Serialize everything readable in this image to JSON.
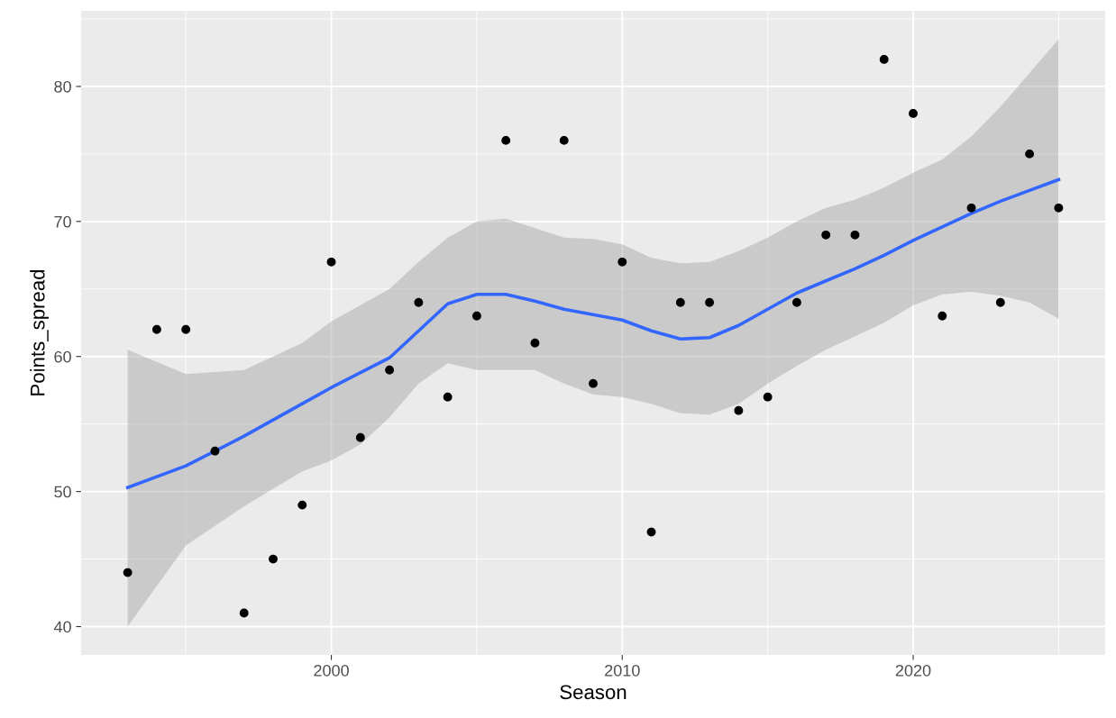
{
  "chart_data": {
    "type": "scatter",
    "xlabel": "Season",
    "ylabel": "Points_spread",
    "xlim": [
      1991.4,
      2026.6
    ],
    "ylim": [
      37.9,
      85.6
    ],
    "xticks": [
      2000,
      2010,
      2020
    ],
    "yticks": [
      40,
      50,
      60,
      70,
      80
    ],
    "grid": true,
    "series": [
      {
        "type": "line",
        "color": "#3366ff",
        "marker": "none",
        "line_style": "solid",
        "x": [
          1993,
          1995,
          1997,
          1999,
          2000,
          2001,
          2002,
          2003,
          2004,
          2005,
          2006,
          2007,
          2008,
          2009,
          2010,
          2011,
          2012,
          2013,
          2014,
          2015,
          2016,
          2017,
          2018,
          2019,
          2020,
          2021,
          2022,
          2023,
          2024,
          2025
        ],
        "values": [
          50.3,
          51.9,
          54.1,
          56.5,
          57.7,
          58.8,
          59.9,
          61.9,
          63.9,
          64.6,
          64.6,
          64.1,
          63.5,
          63.1,
          62.7,
          61.9,
          61.3,
          61.4,
          62.3,
          63.5,
          64.7,
          65.6,
          66.5,
          67.5,
          68.6,
          69.6,
          70.6,
          71.5,
          72.3,
          73.1
        ],
        "lower": [
          40,
          46,
          48.9,
          51.5,
          52.3,
          53.5,
          55.5,
          58,
          59.5,
          59,
          59,
          59,
          58,
          57.2,
          57,
          56.5,
          55.8,
          55.7,
          56.5,
          58,
          59.3,
          60.5,
          61.5,
          62.5,
          63.8,
          64.6,
          64.8,
          64.5,
          64,
          62.8
        ],
        "upper": [
          60.5,
          58.7,
          59,
          61,
          62.6,
          63.8,
          65,
          67,
          68.8,
          70,
          70.2,
          69.5,
          68.8,
          68.7,
          68.3,
          67.3,
          66.9,
          67,
          67.8,
          68.8,
          70,
          71,
          71.6,
          72.5,
          73.6,
          74.6,
          76.3,
          78.5,
          81,
          83.5
        ]
      },
      {
        "color": "#000000",
        "marker": "circle",
        "x": [
          1993,
          1994,
          1995,
          1996,
          1997,
          1998,
          1999,
          2000,
          2001,
          2002,
          2003,
          2004,
          2005,
          2006,
          2007,
          2008,
          2009,
          2010,
          2011,
          2012,
          2013,
          2014,
          2015,
          2016,
          2017,
          2018,
          2019,
          2020,
          2021,
          2022,
          2023,
          2024,
          2025
        ],
        "values": [
          44,
          62,
          62,
          53,
          41,
          45,
          49,
          67,
          54,
          59,
          64,
          57,
          63,
          76,
          61,
          76,
          58,
          67,
          47,
          64,
          64,
          56,
          57,
          64,
          69,
          69,
          82,
          78,
          63,
          71,
          64,
          75,
          71
        ]
      }
    ]
  }
}
